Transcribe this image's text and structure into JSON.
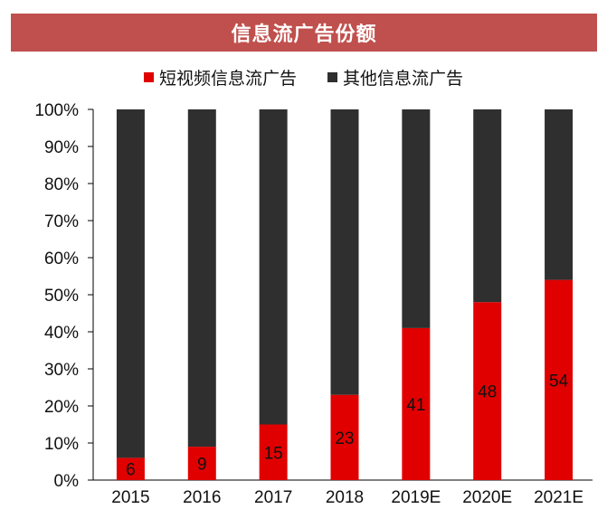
{
  "colors": {
    "title_bg": "#c0504d",
    "short_video": "#e00000",
    "other": "#2f2f2f"
  },
  "chart_data": {
    "type": "bar",
    "stacked": true,
    "title": "信息流广告份额",
    "categories": [
      "2015",
      "2016",
      "2017",
      "2018",
      "2019E",
      "2020E",
      "2021E"
    ],
    "series": [
      {
        "name": "短视频信息流广告",
        "values": [
          6,
          9,
          15,
          23,
          41,
          48,
          54
        ]
      },
      {
        "name": "其他信息流广告",
        "values": [
          94,
          91,
          85,
          77,
          59,
          52,
          46
        ]
      }
    ],
    "data_labels": [
      "6",
      "9",
      "15",
      "23",
      "41",
      "48",
      "54"
    ],
    "ylim": [
      0,
      100
    ],
    "yticks": [
      "0%",
      "10%",
      "20%",
      "30%",
      "40%",
      "50%",
      "60%",
      "70%",
      "80%",
      "90%",
      "100%"
    ],
    "xlabel": "",
    "ylabel": "",
    "grid": false,
    "legend_position": "top"
  }
}
